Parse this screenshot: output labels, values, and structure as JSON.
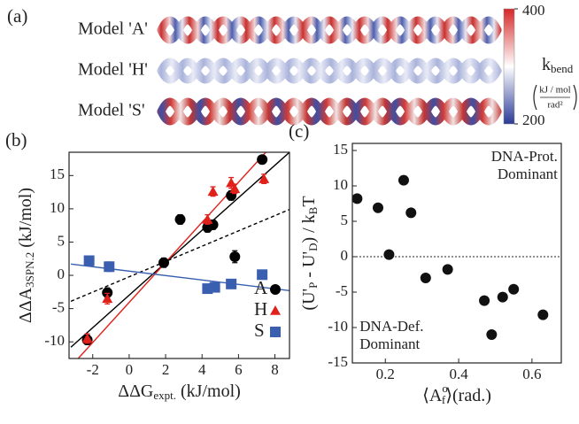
{
  "chart_data": [
    {
      "type": "models",
      "panel_label": "(a)",
      "models": [
        "Model 'A'",
        "Model 'H'",
        "Model 'S'"
      ],
      "colorbar": {
        "clim": [
          200,
          400
        ],
        "ticks": [
          200,
          400
        ],
        "colors": [
          "#2b3a97",
          "#ffffff",
          "#d62728"
        ],
        "label": [
          {
            "text": "k"
          },
          {
            "sub": "bend"
          }
        ],
        "unit_numerator": "kJ / mol",
        "unit_denominator": "rad²"
      }
    },
    {
      "type": "scatter",
      "panel_label": "(b)",
      "xlabel": [
        {
          "text": "ΔΔG"
        },
        {
          "sub": "expt."
        },
        {
          "text": " (kJ/mol)"
        }
      ],
      "ylabel": [
        {
          "text": "ΔΔA"
        },
        {
          "sub": "3SPN.2"
        },
        {
          "text": " (kJ/mol)"
        }
      ],
      "xlim": [
        -3.3,
        8.8
      ],
      "ylim": [
        -12.5,
        18.5
      ],
      "xticks": [
        -2,
        0,
        2,
        4,
        6,
        8
      ],
      "yticks": [
        -10,
        -5,
        0,
        5,
        10,
        15
      ],
      "series": [
        {
          "name": "A",
          "color": "#000000",
          "marker": "circle",
          "x": [
            -2.3,
            -1.2,
            1.9,
            2.8,
            4.3,
            4.6,
            5.6,
            5.8,
            7.3
          ],
          "values": [
            -9.7,
            -2.6,
            1.9,
            8.4,
            7.2,
            7.6,
            12,
            2.8,
            17.4
          ],
          "errors": [
            0.7,
            0.7,
            0.7,
            0.7,
            0.7,
            0.7,
            0.7,
            0.9,
            0.5
          ]
        },
        {
          "name": "H",
          "color": "#e0201b",
          "marker": "triangle",
          "x": [
            -2.3,
            -1.2,
            4.3,
            4.6,
            5.6,
            5.8,
            7.4
          ],
          "values": [
            -9.5,
            -3.5,
            8.4,
            12.6,
            13.9,
            13,
            14.5
          ],
          "errors": [
            0.7,
            0.8,
            0.7,
            0.7,
            0.8,
            0.7,
            0.7
          ]
        },
        {
          "name": "S",
          "color": "#3a5fb0",
          "marker": "square",
          "x": [
            -2.2,
            -1.1,
            4.3,
            4.7,
            5.6,
            7.3
          ],
          "values": [
            2.2,
            1.3,
            -2,
            -1.8,
            -1.3,
            0.1
          ],
          "errors": [
            0.6,
            0.7,
            0.6,
            0.5,
            0.6,
            0.6
          ]
        }
      ],
      "fit_lines": [
        {
          "color": "#000000",
          "dashed": false,
          "x": [
            -3.2,
            8.8
          ],
          "y": [
            -10.8,
            18.5
          ]
        },
        {
          "color": "#e0201b",
          "dashed": false,
          "x": [
            -2.8,
            7.5
          ],
          "y": [
            -12.5,
            18.5
          ]
        },
        {
          "color": "#000000",
          "dashed": true,
          "x": [
            -3.2,
            8.8
          ],
          "y": [
            -3.9,
            9.9
          ]
        },
        {
          "color": "#3a5fb0",
          "dashed": false,
          "x": [
            -3.2,
            8.8
          ],
          "y": [
            1.7,
            -2.3
          ]
        }
      ]
    },
    {
      "type": "scatter",
      "panel_label": "(c)",
      "xlabel": [
        {
          "text": "⟨A"
        },
        {
          "sup": "o"
        },
        {
          "sub": "f"
        },
        {
          "text": "⟩(rad.)"
        }
      ],
      "ylabel": [
        {
          "text": "(U'"
        },
        {
          "sub": "P"
        },
        {
          "text": " - U'"
        },
        {
          "sub": "D"
        },
        {
          "text": ") / k"
        },
        {
          "sub": "B"
        },
        {
          "text": "T"
        }
      ],
      "xlim": [
        0.11,
        0.68
      ],
      "ylim": [
        -15,
        16
      ],
      "xticks": [
        0.2,
        0.4,
        0.6
      ],
      "yticks": [
        -15,
        -10,
        -5,
        0,
        5,
        10,
        15
      ],
      "reference_line": 0,
      "annotations": [
        {
          "lines": [
            "DNA-Prot.",
            "Dominant"
          ],
          "x": 0.67,
          "y": 14,
          "anchor": "end"
        },
        {
          "lines": [
            "DNA-Def.",
            "Dominant"
          ],
          "x": 0.13,
          "y": -10,
          "anchor": "start"
        }
      ],
      "series": [
        {
          "color": "#111111",
          "marker": "circle",
          "x": [
            0.123,
            0.18,
            0.21,
            0.25,
            0.27,
            0.31,
            0.37,
            0.47,
            0.49,
            0.52,
            0.55,
            0.63
          ],
          "values": [
            8.2,
            6.9,
            0.3,
            10.8,
            6.2,
            -3,
            -1.8,
            -6.2,
            -11,
            -5.7,
            -4.6,
            -8.2
          ]
        }
      ]
    }
  ]
}
